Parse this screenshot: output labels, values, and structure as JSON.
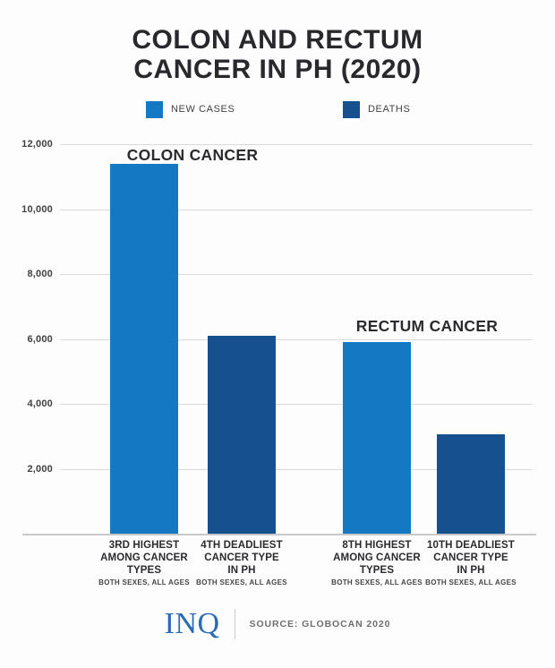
{
  "title": {
    "line1": "COLON AND RECTUM",
    "line2": "CANCER IN PH (2020)"
  },
  "footer": {
    "logo": "INQ",
    "source": "SOURCE: GLOBOCAN 2020"
  },
  "colors": {
    "new_cases": "#1478c2",
    "deaths": "#16508e",
    "logo_blue": "#2a6cb4",
    "title_text": "#29282d",
    "gridline": "#d9dadb"
  },
  "chart_data": {
    "type": "bar",
    "title": "COLON AND RECTUM CANCER IN PH (2020)",
    "source": "SOURCE: GLOBOCAN 2020",
    "ylim": [
      0,
      12000
    ],
    "ytick_values": [
      12000,
      10000,
      8000,
      6000,
      4000,
      2000
    ],
    "ytick_labels": [
      "12,000",
      "10,000",
      "8,000",
      "6,000",
      "4,000",
      "2,000"
    ],
    "grid": true,
    "legend_position": "top",
    "legend": [
      {
        "name": "NEW CASES",
        "color": "#1478c2"
      },
      {
        "name": "DEATHS",
        "color": "#16508e"
      }
    ],
    "groups": [
      {
        "label": "COLON CANCER"
      },
      {
        "label": "RECTUM CANCER"
      }
    ],
    "bars": [
      {
        "group": "COLON CANCER",
        "series": "NEW CASES",
        "value": 11400,
        "color": "#1478c2",
        "caption_lines": [
          "3RD HIGHEST",
          "AMONG CANCER",
          "TYPES"
        ],
        "subcaption": "BOTH SEXES, ALL AGES"
      },
      {
        "group": "COLON CANCER",
        "series": "DEATHS",
        "value": 6100,
        "color": "#16508e",
        "caption_lines": [
          "4TH DEADLIEST",
          "CANCER TYPE",
          "IN PH"
        ],
        "subcaption": "BOTH SEXES, ALL AGES"
      },
      {
        "group": "RECTUM CANCER",
        "series": "NEW CASES",
        "value": 5900,
        "color": "#1478c2",
        "caption_lines": [
          "8TH HIGHEST",
          "AMONG CANCER",
          "TYPES"
        ],
        "subcaption": "BOTH SEXES, ALL AGES"
      },
      {
        "group": "RECTUM CANCER",
        "series": "DEATHS",
        "value": 3050,
        "color": "#16508e",
        "caption_lines": [
          "10TH DEADLIEST",
          "CANCER TYPE",
          "IN PH"
        ],
        "subcaption": "BOTH SEXES, ALL AGES"
      }
    ]
  }
}
